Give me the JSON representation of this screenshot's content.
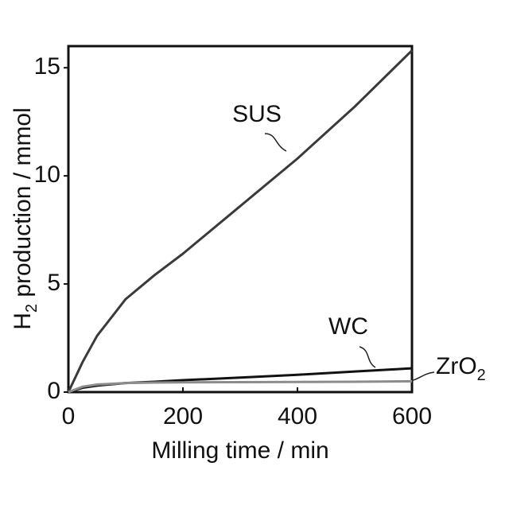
{
  "chart_data": {
    "type": "line",
    "xlabel": "Milling time / min",
    "ylabel": "H2 production / mmol",
    "x": [
      0,
      25,
      50,
      100,
      150,
      200,
      300,
      400,
      500,
      600
    ],
    "series": [
      {
        "name": "SUS",
        "color": "#3a3a3a",
        "values": [
          0,
          1.4,
          2.6,
          4.3,
          5.4,
          6.4,
          8.6,
          10.8,
          13.2,
          15.8
        ]
      },
      {
        "name": "WC",
        "color": "#111111",
        "values": [
          0,
          0.2,
          0.3,
          0.42,
          0.48,
          0.55,
          0.67,
          0.8,
          0.95,
          1.1
        ]
      },
      {
        "name": "ZrO2",
        "color": "#8c8c8c",
        "values": [
          0,
          0.25,
          0.35,
          0.42,
          0.44,
          0.45,
          0.46,
          0.47,
          0.48,
          0.5
        ]
      }
    ],
    "xlim": [
      0,
      600
    ],
    "xticks": [
      0,
      200,
      400,
      600
    ],
    "ylim": [
      0,
      16
    ],
    "yticks": [
      0,
      5,
      10,
      15
    ]
  }
}
